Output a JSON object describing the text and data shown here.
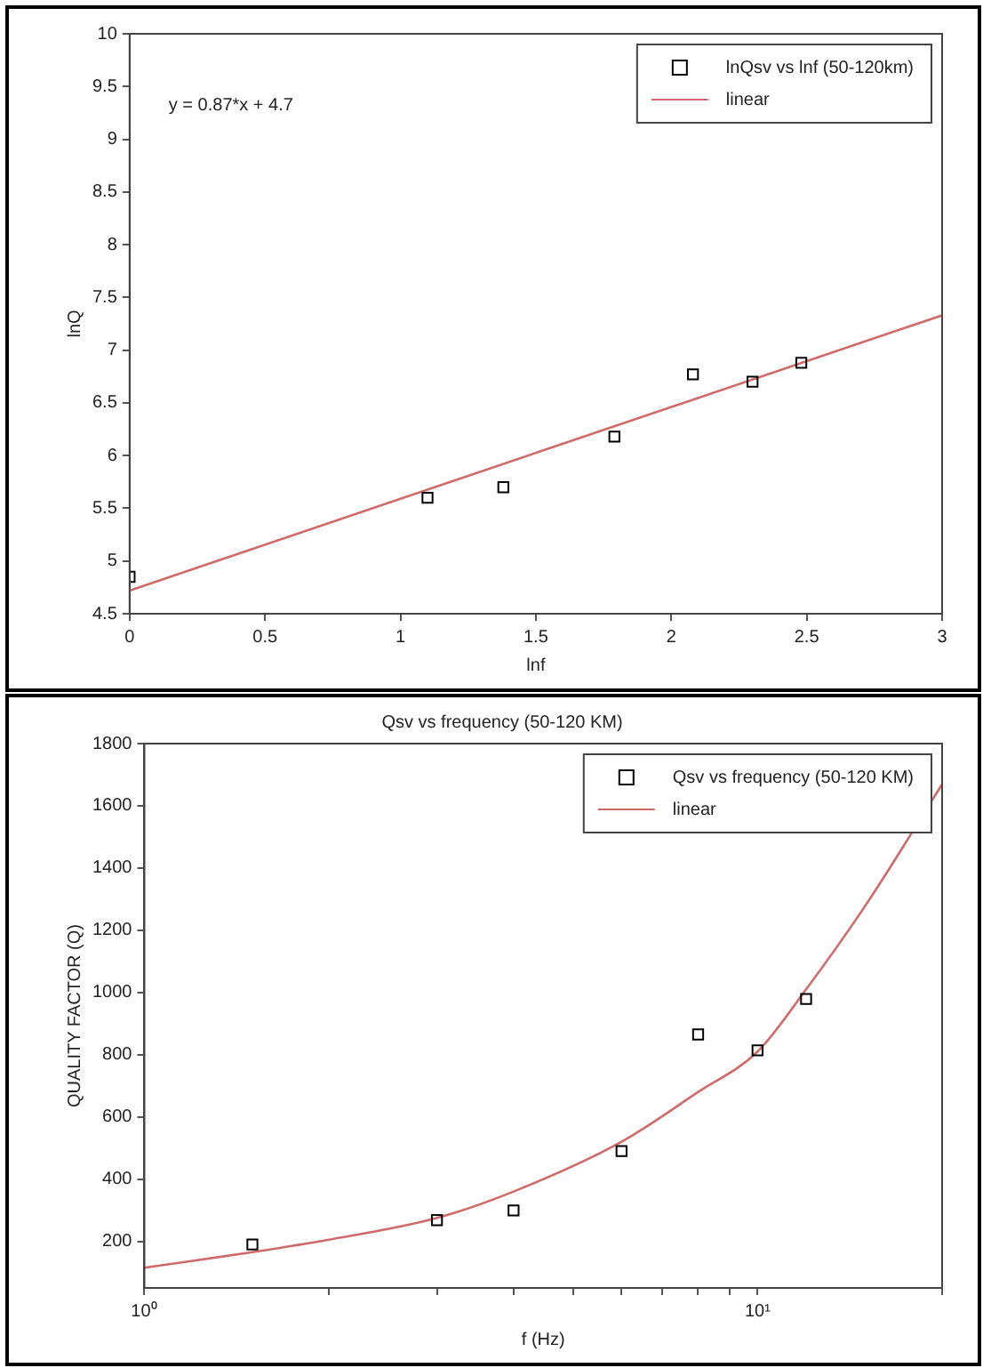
{
  "chart_data": [
    {
      "type": "scatter",
      "xlabel": "lnf",
      "ylabel": "lnQ",
      "xlim": [
        0,
        3
      ],
      "ylim": [
        4.5,
        10
      ],
      "xticks": [
        0,
        0.5,
        1,
        1.5,
        2,
        2.5,
        3
      ],
      "yticks": [
        4.5,
        5,
        5.5,
        6,
        6.5,
        7,
        7.5,
        8,
        8.5,
        9,
        9.5,
        10
      ],
      "grid": false,
      "legend": "top right",
      "annotations": [
        "y = 0.87*x + 4.7"
      ],
      "series": [
        {
          "name": "lnQsv vs lnf (50-120km)",
          "marker": "square",
          "color": "#000000",
          "x": [
            0,
            1.1,
            1.38,
            1.79,
            2.08,
            2.3,
            2.48
          ],
          "values": [
            4.85,
            5.6,
            5.7,
            6.18,
            6.77,
            6.7,
            6.88
          ]
        },
        {
          "name": "linear",
          "type": "line",
          "color": "#d06a6a",
          "x": [
            0,
            3
          ],
          "values": [
            4.72,
            7.33
          ]
        }
      ]
    },
    {
      "type": "scatter",
      "title": "Qsv vs frequency (50-120 KM)",
      "xlabel": "f (Hz)",
      "ylabel": "QUALITY FACTOR (Q)",
      "log": "x",
      "xlim": [
        1,
        20
      ],
      "ylim": [
        50,
        1800
      ],
      "xticks": [
        {
          "value": 1,
          "label": "10⁰"
        },
        {
          "value": 2,
          "label": null
        },
        {
          "value": 3,
          "label": null
        },
        {
          "value": 4,
          "label": null
        },
        {
          "value": 5,
          "label": null
        },
        {
          "value": 6,
          "label": null
        },
        {
          "value": 7,
          "label": null
        },
        {
          "value": 8,
          "label": null
        },
        {
          "value": 9,
          "label": null
        },
        {
          "value": 10,
          "label": "10¹"
        },
        {
          "value": 20,
          "label": null
        }
      ],
      "yticks": [
        200,
        400,
        600,
        800,
        1000,
        1200,
        1400,
        1600,
        1800
      ],
      "grid": false,
      "legend": "top right",
      "series": [
        {
          "name": "Qsv vs frequency (50-120 KM)",
          "marker": "square",
          "color": "#000000",
          "x": [
            1.5,
            3,
            4,
            6,
            8,
            10,
            12
          ],
          "values": [
            190,
            268,
            299,
            490,
            865,
            814,
            979
          ]
        },
        {
          "name": "linear",
          "type": "line",
          "color": "#d06a6a",
          "x": [
            1,
            1.5,
            2,
            3,
            4,
            6,
            8,
            10,
            12,
            15,
            20
          ],
          "values": [
            115,
            165,
            205,
            275,
            360,
            520,
            680,
            810,
            1010,
            1280,
            1669
          ]
        }
      ]
    }
  ]
}
